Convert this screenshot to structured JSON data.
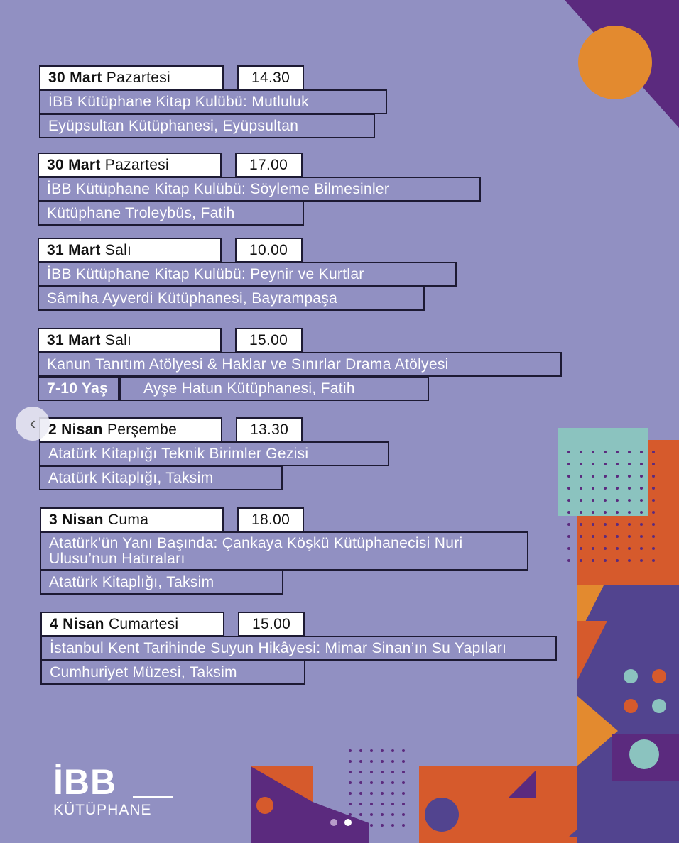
{
  "events": [
    {
      "date_bold": "30 Mart",
      "day": "Pazartesi",
      "time": "14.30",
      "title": "İBB Kütüphane Kitap Kulübü: Mutluluk",
      "place": "Eyüpsultan Kütüphanesi, Eyüpsultan"
    },
    {
      "date_bold": "30 Mart",
      "day": "Pazartesi",
      "time": "17.00",
      "title": "İBB Kütüphane Kitap Kulübü: Söyleme Bilmesinler",
      "place": "Kütüphane Troleybüs, Fatih"
    },
    {
      "date_bold": "31 Mart",
      "day": "Salı",
      "time": "10.00",
      "title": "İBB Kütüphane Kitap Kulübü: Peynir ve Kurtlar",
      "place": "Sâmiha Ayverdi Kütüphanesi, Bayrampaşa"
    },
    {
      "date_bold": "31 Mart",
      "day": "Salı",
      "time": "15.00",
      "title": "Kanun Tanıtım Atölyesi & Haklar ve Sınırlar Drama Atölyesi",
      "age": "7-10 Yaş",
      "place": "Ayşe Hatun Kütüphanesi, Fatih"
    },
    {
      "date_bold": "2 Nisan",
      "day": "Perşembe",
      "time": "13.30",
      "title": "Atatürk Kitaplığı Teknik Birimler Gezisi",
      "place": "Atatürk Kitaplığı, Taksim"
    },
    {
      "date_bold": "3 Nisan",
      "day": "Cuma",
      "time": "18.00",
      "title": "Atatürk’ün Yanı Başında: Çankaya Köşkü Kütüphanecisi Nuri Ulusu’nun Hatıraları",
      "place": "Atatürk Kitaplığı, Taksim"
    },
    {
      "date_bold": "4 Nisan",
      "day": "Cumartesi",
      "time": "15.00",
      "title": "İstanbul Kent Tarihinde Suyun Hikâyesi: Mimar Sinan’ın Su Yapıları",
      "place": "Cumhuriyet Müzesi, Taksim"
    }
  ],
  "logo": {
    "top": "İBB",
    "bottom": "KÜTÜPHANE"
  },
  "carousel": {
    "prev_icon": "chevron-left-icon",
    "slides": 2,
    "active": 2
  },
  "colors": {
    "background": "#9190c2",
    "purple": "#5b2a7e",
    "orange": "#e38a2f",
    "red_orange": "#d65a2c",
    "teal": "#8bc3bf",
    "indigo": "#52448f"
  }
}
